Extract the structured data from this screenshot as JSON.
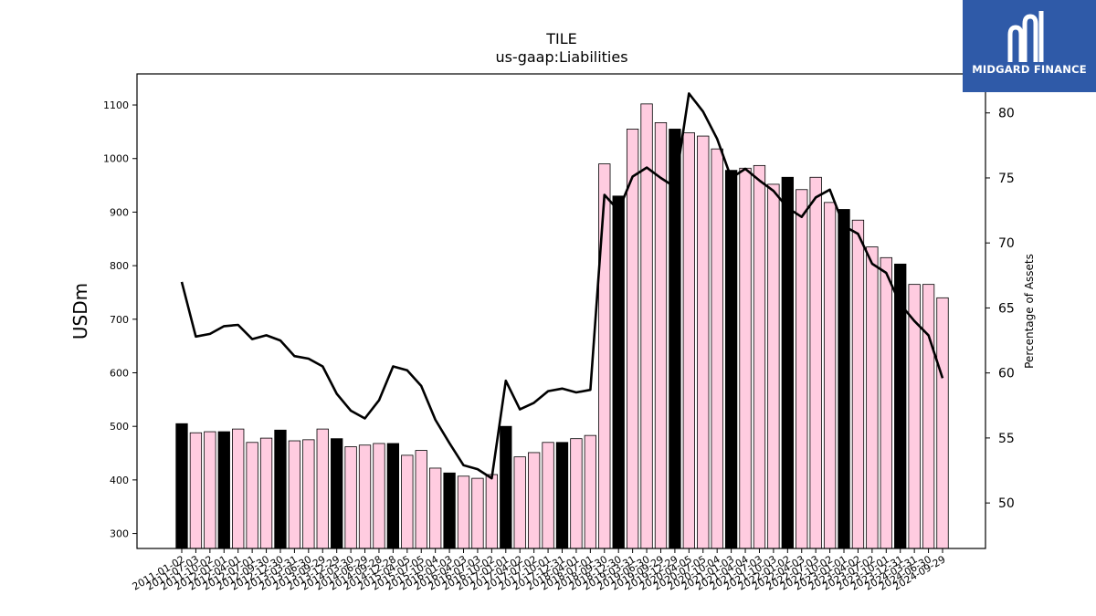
{
  "logo": {
    "text": "MIDGARD FINANCE"
  },
  "chart_data": {
    "type": "bar",
    "title": "TILE",
    "subtitle": "us-gaap:Liabilities",
    "ylabel": "USDm",
    "y2label": "Percentage of Assets",
    "ylim": [
      272,
      1158
    ],
    "y2lim": [
      46.5,
      83.0
    ],
    "yticks": [
      300,
      400,
      500,
      600,
      700,
      800,
      900,
      1000,
      1100
    ],
    "y2ticks": [
      50,
      55,
      60,
      65,
      70,
      75,
      80
    ],
    "grid": false,
    "colors": {
      "bar_default": "#ffcce0",
      "bar_highlight": "#000000",
      "line": "#000000"
    },
    "categories": [
      "2011-01-02",
      "2011-07-03",
      "2011-10-02",
      "2012-01-01",
      "2012-04-01",
      "2012-07-01",
      "2012-09-30",
      "2012-12-30",
      "2013-03-31",
      "2013-06-30",
      "2013-09-29",
      "2013-12-29",
      "2014-03-30",
      "2014-06-29",
      "2014-09-28",
      "2014-12-28",
      "2015-04-05",
      "2015-07-05",
      "2015-10-04",
      "2016-01-03",
      "2016-04-03",
      "2016-07-03",
      "2016-10-02",
      "2017-01-01",
      "2017-04-02",
      "2017-07-02",
      "2017-10-01",
      "2017-12-31",
      "2018-04-01",
      "2018-07-01",
      "2018-09-30",
      "2018-12-30",
      "2019-03-31",
      "2019-06-30",
      "2019-09-29",
      "2019-12-29",
      "2020-04-05",
      "2020-07-05",
      "2020-10-04",
      "2021-01-03",
      "2021-04-04",
      "2021-07-03",
      "2021-10-03",
      "2022-01-02",
      "2022-04-03",
      "2022-07-03",
      "2022-10-02",
      "2023-01-01",
      "2023-04-02",
      "2023-07-02",
      "2023-10-01",
      "2023-12-31",
      "2024-03-31",
      "2024-06-30",
      "2024-09-29"
    ],
    "series": [
      {
        "type": "bar",
        "values": [
          505,
          488,
          490,
          490,
          495,
          470,
          478,
          493,
          473,
          475,
          495,
          477,
          462,
          465,
          468,
          468,
          446,
          455,
          422,
          413,
          407,
          403,
          410,
          500,
          443,
          451,
          470,
          470,
          477,
          483,
          990,
          930,
          1055,
          1102,
          1067,
          1055,
          1048,
          1042,
          1018,
          978,
          982,
          987,
          952,
          965,
          942,
          965,
          918,
          905,
          885,
          835,
          815,
          803,
          765,
          765,
          740
        ],
        "highlight": [
          true,
          false,
          false,
          true,
          false,
          false,
          false,
          true,
          false,
          false,
          false,
          true,
          false,
          false,
          false,
          true,
          false,
          false,
          false,
          true,
          false,
          false,
          false,
          true,
          false,
          false,
          false,
          true,
          false,
          false,
          false,
          true,
          false,
          false,
          false,
          true,
          false,
          false,
          false,
          true,
          false,
          false,
          false,
          true,
          false,
          false,
          false,
          true,
          false,
          false,
          false,
          true,
          false,
          false,
          false
        ]
      },
      {
        "type": "line",
        "axis": "right",
        "values": [
          67.0,
          62.8,
          63.0,
          63.6,
          63.7,
          62.6,
          62.9,
          62.5,
          61.3,
          61.1,
          60.5,
          58.4,
          57.1,
          56.5,
          57.9,
          60.5,
          60.2,
          59.0,
          56.4,
          54.6,
          52.9,
          52.6,
          51.9,
          59.4,
          57.2,
          57.7,
          58.6,
          58.8,
          58.5,
          58.7,
          73.7,
          72.5,
          75.1,
          75.8,
          75.0,
          74.3,
          81.5,
          80.1,
          78.0,
          75.0,
          75.7,
          74.8,
          74.0,
          72.7,
          72.0,
          73.5,
          74.1,
          71.3,
          70.7,
          68.4,
          67.7,
          65.3,
          64.0,
          62.9,
          59.6
        ]
      }
    ]
  }
}
